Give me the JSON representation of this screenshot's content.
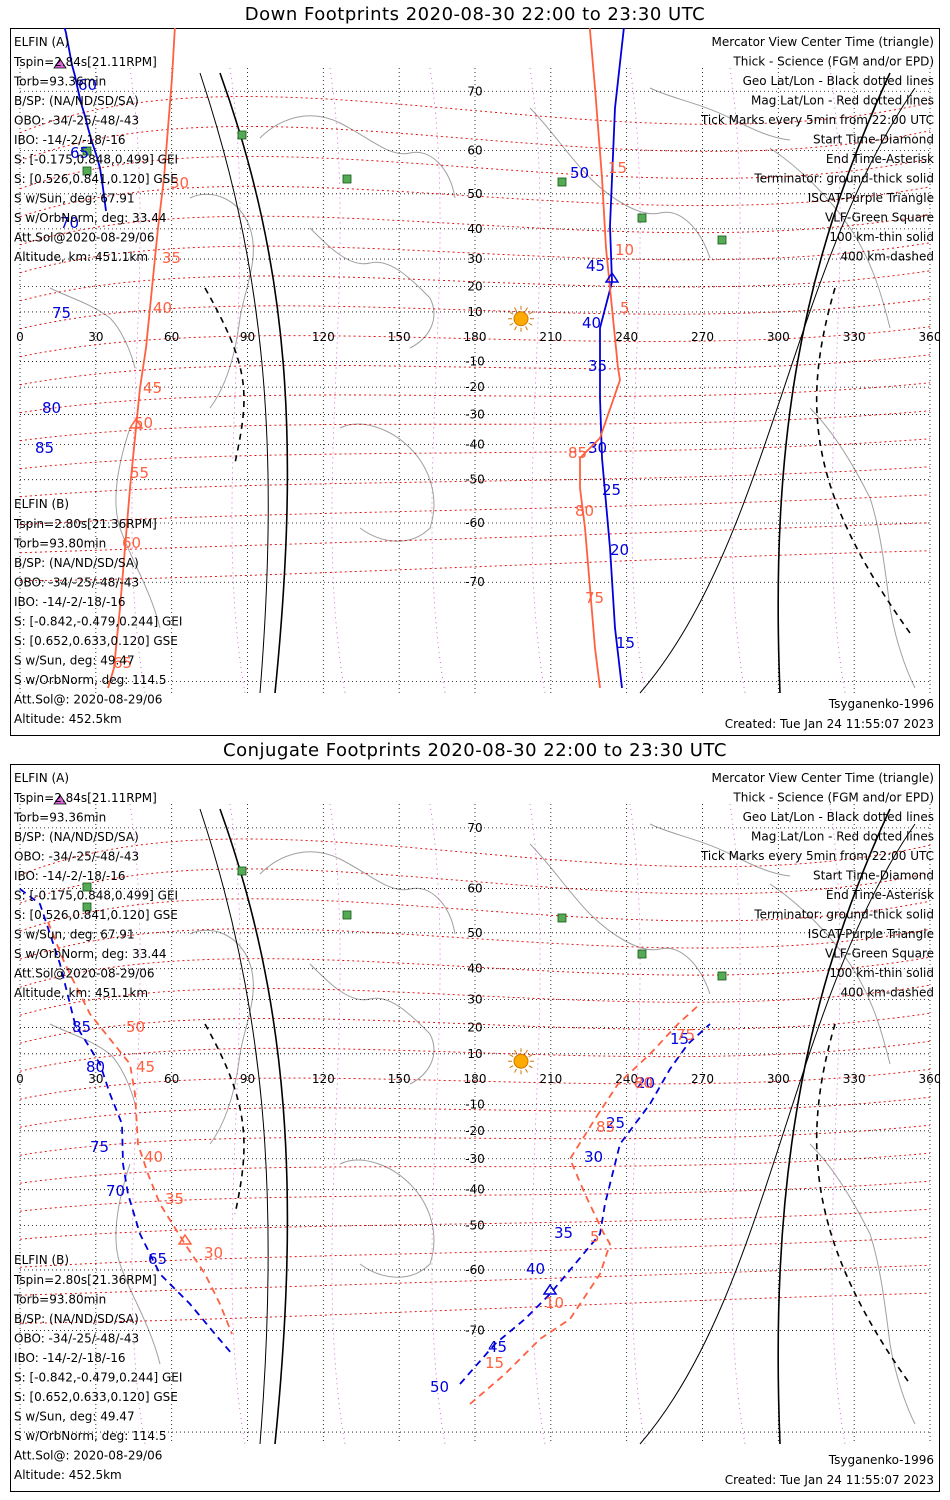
{
  "colors": {
    "elfin_a": "#0000dd",
    "elfin_b": "#ff6040",
    "mag": "#e00000",
    "geo": "#000000",
    "isr": "#cc44cc",
    "vlf": "#228833",
    "sun": "#ffaa00",
    "coast": "#a0a0a0"
  },
  "chart_data": [
    {
      "type": "line",
      "title": "Down Footprints 2020-08-30 22:00 to 23:30 UTC",
      "x_ticks": [
        "0",
        "30",
        "60",
        "90",
        "120",
        "150",
        "180",
        "210",
        "240",
        "270",
        "300",
        "330",
        "360"
      ],
      "y_ticks": [
        "70",
        "60",
        "50",
        "40",
        "30",
        "20",
        "10",
        "-10",
        "-20",
        "-30",
        "-40",
        "-50",
        "-60",
        "-70"
      ],
      "xlim": [
        0,
        360
      ],
      "legend_right": [
        {
          "text": "Mercator View Center Time (triangle)",
          "color": "#000000"
        },
        {
          "text": "Thick - Science (FGM and/or EPD)",
          "color": "#000000"
        },
        {
          "text": "Geo Lat/Lon - Black dotted lines",
          "color": "#000000"
        },
        {
          "text": "Mag Lat/Lon - Red dotted lines",
          "color": "#e00000"
        },
        {
          "text": "Tick Marks every 5min from 22:00 UTC",
          "color": "#000000"
        },
        {
          "text": "Start Time-Diamond",
          "color": "#000000"
        },
        {
          "text": "End Time-Asterisk",
          "color": "#000000"
        },
        {
          "text": "Terminator: ground-thick solid",
          "color": "#000000"
        },
        {
          "text": "ISCAT-Purple Triangle",
          "color": "#cc44cc"
        },
        {
          "text": "VLF-Green Square",
          "color": "#228833"
        },
        {
          "text": "100 km-thin solid",
          "color": "#000000"
        },
        {
          "text": "400 km-dashed",
          "color": "#000000"
        }
      ],
      "info_a": {
        "title": "ELFIN (A)",
        "lines": [
          "Tspin=2.84s[21.11RPM]",
          "Torb=93.36min",
          "B/SP: (NA/ND/SD/SA)",
          "OBO: -34/-25/-48/-43",
          "IBO: -14/-2/-18/-16",
          "S: [-0.175,0.848,0.499] GEI",
          "S: [0.526,0.841,0.120] GSE",
          "S w/Sun, deg: 67.91",
          "S w/OrbNorm, deg: 33.44",
          "Att.Sol@2020-08-29/06",
          "Altitude, km: 451.1km"
        ]
      },
      "info_b": {
        "title": "ELFIN (B)",
        "lines": [
          "Tspin=2.80s[21.36RPM]",
          "Torb=93.80min",
          "B/SP: (NA/ND/SD/SA)",
          "OBO: -34/-25/-48/-43",
          "IBO: -14/-2/-18/-16",
          "S: [-0.842,-0.479,0.244] GEI",
          "S: [0.652,0.633,0.120] GSE",
          "S w/Sun, deg: 49.47",
          "S w/OrbNorm, deg: 114.5",
          "Att.Sol@: 2020-08-29/06",
          "Altitude: 452.5km"
        ]
      },
      "footer_left": "Tsyganenko-1996",
      "footer_right": "Created: Tue Jan 24 11:55:07 2023",
      "series": [
        {
          "name": "ELFIN (A)",
          "style": "solid",
          "color": "#0000dd",
          "points": [
            [
              42,
              -55
            ],
            [
              43,
              -44
            ],
            [
              46,
              -36
            ],
            [
              49,
              -22
            ],
            [
              56,
              5
            ],
            [
              62,
              37
            ],
            [
              65,
              48
            ],
            [
              68,
              62
            ],
            [
              71,
              75
            ],
            [
              75,
              88
            ],
            [
              78,
              100
            ],
            [
              82,
              114
            ],
            [
              86,
              126
            ],
            [
              90,
              140
            ],
            [
              93,
              160
            ],
            [
              96,
              183
            ]
          ],
          "labels": [
            {
              "text": "60",
              "x": 68,
              "y": 62
            },
            {
              "text": "65",
              "x": 60,
              "y": 130
            },
            {
              "text": "70",
              "x": 50,
              "y": 200
            },
            {
              "text": "75",
              "x": 42,
              "y": 290
            },
            {
              "text": "80",
              "x": 32,
              "y": 385
            },
            {
              "text": "85",
              "x": 25,
              "y": 425
            }
          ],
          "seg2": [
            [
              620,
              -55
            ],
            [
              605,
              80
            ],
            [
              600,
              198
            ],
            [
              602,
              254
            ],
            [
              590,
              300
            ],
            [
              590,
              370
            ],
            [
              592,
              430
            ],
            [
              600,
              520
            ],
            [
              605,
              600
            ],
            [
              612,
              660
            ]
          ],
          "seg2_labels": [
            {
              "text": "50",
              "x": 560,
              "y": 150
            },
            {
              "text": "45",
              "x": 576,
              "y": 243
            },
            {
              "text": "40",
              "x": 572,
              "y": 300
            },
            {
              "text": "35",
              "x": 578,
              "y": 343
            },
            {
              "text": "30",
              "x": 578,
              "y": 425
            },
            {
              "text": "25",
              "x": 592,
              "y": 467
            },
            {
              "text": "20",
              "x": 600,
              "y": 527
            },
            {
              "text": "15",
              "x": 606,
              "y": 620
            }
          ]
        },
        {
          "name": "ELFIN (B)",
          "style": "solid",
          "color": "#ff6040",
          "points": [
            [
              168,
              -55
            ],
            [
              162,
              50
            ],
            [
              158,
              100
            ],
            [
              154,
              150
            ],
            [
              148,
              200
            ],
            [
              142,
              260
            ],
            [
              136,
              320
            ],
            [
              130,
              360
            ],
            [
              126,
              400
            ],
            [
              120,
              460
            ],
            [
              115,
              520
            ],
            [
              110,
              580
            ],
            [
              104,
              640
            ],
            [
              98,
              660
            ]
          ],
          "labels": [
            {
              "text": "30",
              "x": 160,
              "y": 160
            },
            {
              "text": "35",
              "x": 152,
              "y": 235
            },
            {
              "text": "40",
              "x": 143,
              "y": 285
            },
            {
              "text": "45",
              "x": 133,
              "y": 365
            },
            {
              "text": "50",
              "x": 124,
              "y": 400
            },
            {
              "text": "55",
              "x": 120,
              "y": 450
            },
            {
              "text": "60",
              "x": 112,
              "y": 520
            },
            {
              "text": "65",
              "x": 103,
              "y": 640
            }
          ],
          "seg2": [
            [
              575,
              -55
            ],
            [
              585,
              60
            ],
            [
              592,
              150
            ],
            [
              596,
              220
            ],
            [
              603,
              290
            ],
            [
              608,
              340
            ],
            [
              610,
              352
            ],
            [
              590,
              410
            ],
            [
              570,
              430
            ],
            [
              570,
              460
            ],
            [
              575,
              500
            ],
            [
              580,
              560
            ],
            [
              585,
              620
            ],
            [
              590,
              660
            ]
          ],
          "seg2_labels": [
            {
              "text": "15",
              "x": 598,
              "y": 145
            },
            {
              "text": "10",
              "x": 605,
              "y": 227
            },
            {
              "text": "5",
              "x": 610,
              "y": 285
            },
            {
              "text": "85",
              "x": 558,
              "y": 430
            },
            {
              "text": "80",
              "x": 565,
              "y": 488
            },
            {
              "text": "75",
              "x": 575,
              "y": 575
            }
          ]
        }
      ]
    },
    {
      "type": "line",
      "title": "Conjugate Footprints 2020-08-30 22:00 to 23:30 UTC",
      "x_ticks": [
        "0",
        "30",
        "60",
        "90",
        "120",
        "150",
        "180",
        "210",
        "240",
        "270",
        "300",
        "330",
        "360"
      ],
      "y_ticks": [
        "70",
        "60",
        "50",
        "40",
        "30",
        "20",
        "10",
        "-10",
        "-20",
        "-30",
        "-40",
        "-50",
        "-60",
        "-70"
      ],
      "xlim": [
        0,
        360
      ],
      "legend_right": [
        {
          "text": "Mercator View Center Time (triangle)",
          "color": "#000000"
        },
        {
          "text": "Thick - Science (FGM and/or EPD)",
          "color": "#000000"
        },
        {
          "text": "Geo Lat/Lon - Black dotted lines",
          "color": "#000000"
        },
        {
          "text": "Mag Lat/Lon - Red dotted lines",
          "color": "#e00000"
        },
        {
          "text": "Tick Marks every 5min from 22:00 UTC",
          "color": "#000000"
        },
        {
          "text": "Start Time-Diamond",
          "color": "#000000"
        },
        {
          "text": "End Time-Asterisk",
          "color": "#000000"
        },
        {
          "text": "Terminator: ground-thick solid",
          "color": "#000000"
        },
        {
          "text": "ISCAT-Purple Triangle",
          "color": "#cc44cc"
        },
        {
          "text": "VLF-Green Square",
          "color": "#228833"
        },
        {
          "text": "100 km-thin solid",
          "color": "#000000"
        },
        {
          "text": "400 km-dashed",
          "color": "#000000"
        }
      ],
      "info_a": {
        "title": "ELFIN (A)",
        "lines": [
          "Tspin=2.84s[21.11RPM]",
          "Torb=93.36min",
          "B/SP: (NA/ND/SD/SA)",
          "OBO: -34/-25/-48/-43",
          "IBO: -14/-2/-18/-16",
          "S: [-0.175,0.848,0.499] GEI",
          "S: [0.526,0.841,0.120] GSE",
          "S w/Sun, deg: 67.91",
          "S w/OrbNorm, deg: 33.44",
          "Att.Sol@2020-08-29/06",
          "Altitude, km: 451.1km"
        ]
      },
      "info_b": {
        "title": "ELFIN (B)",
        "lines": [
          "Tspin=2.80s[21.36RPM]",
          "Torb=93.80min",
          "B/SP: (NA/ND/SD/SA)",
          "OBO: -34/-25/-48/-43",
          "IBO: -14/-2/-18/-16",
          "S: [-0.842,-0.479,0.244] GEI",
          "S: [0.652,0.633,0.120] GSE",
          "S w/Sun, deg: 49.47",
          "S w/OrbNorm, deg: 114.5",
          "Att.Sol@: 2020-08-29/06",
          "Altitude: 452.5km"
        ]
      },
      "footer_left": "Tsyganenko-1996",
      "footer_right": "Created: Tue Jan 24 11:55:07 2023",
      "series": [
        {
          "name": "ELFIN (A)",
          "style": "dashed",
          "color": "#0000dd",
          "points": [
            [
              10,
              125
            ],
            [
              30,
              140
            ],
            [
              50,
              200
            ],
            [
              65,
              260
            ],
            [
              90,
              300
            ],
            [
              100,
              330
            ],
            [
              112,
              360
            ],
            [
              113,
              400
            ],
            [
              118,
              430
            ],
            [
              130,
              470
            ],
            [
              150,
              510
            ],
            [
              180,
              540
            ],
            [
              205,
              570
            ],
            [
              222,
              590
            ]
          ],
          "labels": [
            {
              "text": "85",
              "x": 62,
              "y": 268
            },
            {
              "text": "80",
              "x": 76,
              "y": 308
            },
            {
              "text": "75",
              "x": 80,
              "y": 388
            },
            {
              "text": "70",
              "x": 96,
              "y": 432
            },
            {
              "text": "65",
              "x": 138,
              "y": 500
            }
          ],
          "seg2": [
            [
              450,
              620
            ],
            [
              485,
              580
            ],
            [
              515,
              555
            ],
            [
              540,
              530
            ],
            [
              565,
              500
            ],
            [
              590,
              470
            ],
            [
              595,
              440
            ],
            [
              610,
              380
            ],
            [
              640,
              340
            ],
            [
              660,
              305
            ],
            [
              678,
              280
            ],
            [
              700,
              260
            ]
          ],
          "seg2_labels": [
            {
              "text": "50",
              "x": 420,
              "y": 628
            },
            {
              "text": "45",
              "x": 478,
              "y": 588
            },
            {
              "text": "40",
              "x": 516,
              "y": 510
            },
            {
              "text": "35",
              "x": 544,
              "y": 474
            },
            {
              "text": "30",
              "x": 574,
              "y": 398
            },
            {
              "text": "25",
              "x": 596,
              "y": 364
            },
            {
              "text": "20",
              "x": 626,
              "y": 324
            },
            {
              "text": "15",
              "x": 660,
              "y": 280
            }
          ]
        },
        {
          "name": "ELFIN (B)",
          "style": "dashed",
          "color": "#ff6040",
          "points": [
            [
              38,
              158
            ],
            [
              55,
              200
            ],
            [
              80,
              250
            ],
            [
              120,
              300
            ],
            [
              125,
              330
            ],
            [
              128,
              380
            ],
            [
              138,
              410
            ],
            [
              150,
              440
            ],
            [
              175,
              480
            ],
            [
              195,
              510
            ],
            [
              210,
              540
            ],
            [
              222,
              570
            ]
          ],
          "labels": [
            {
              "text": "50",
              "x": 116,
              "y": 268
            },
            {
              "text": "45",
              "x": 126,
              "y": 308
            },
            {
              "text": "40",
              "x": 134,
              "y": 398
            },
            {
              "text": "35",
              "x": 155,
              "y": 440
            },
            {
              "text": "30",
              "x": 194,
              "y": 494
            }
          ],
          "seg2": [
            [
              460,
              640
            ],
            [
              495,
              610
            ],
            [
              530,
              575
            ],
            [
              560,
              555
            ],
            [
              590,
              510
            ],
            [
              600,
              480
            ],
            [
              593,
              468
            ],
            [
              575,
              430
            ],
            [
              560,
              395
            ],
            [
              585,
              355
            ],
            [
              608,
              320
            ],
            [
              640,
              290
            ],
            [
              668,
              260
            ],
            [
              690,
              240
            ]
          ],
          "seg2_labels": [
            {
              "text": "15",
              "x": 475,
              "y": 604
            },
            {
              "text": "10",
              "x": 535,
              "y": 544
            },
            {
              "text": "5",
              "x": 580,
              "y": 478
            },
            {
              "text": "85",
              "x": 586,
              "y": 368
            },
            {
              "text": "80",
              "x": 624,
              "y": 324
            },
            {
              "text": "75",
              "x": 666,
              "y": 276
            }
          ]
        }
      ]
    }
  ]
}
